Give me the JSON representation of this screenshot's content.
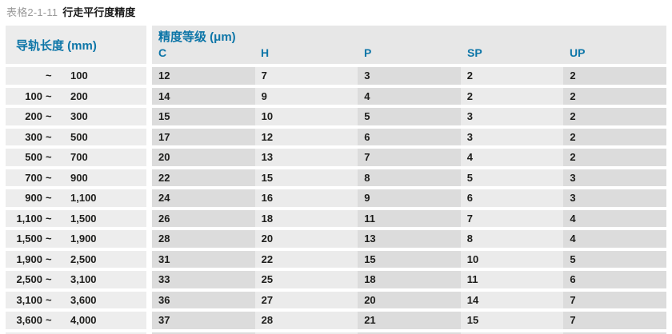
{
  "title": {
    "prefix": "表格2-1-11",
    "text": "行走平行度精度"
  },
  "table": {
    "rail_length_header": "导轨长度 (mm)",
    "accuracy_group_header": "精度等级 (μm)",
    "grade_columns": [
      "C",
      "H",
      "P",
      "SP",
      "UP"
    ],
    "tilde": "~",
    "rows": [
      {
        "from": "",
        "to": "100",
        "values": [
          "12",
          "7",
          "3",
          "2",
          "2"
        ]
      },
      {
        "from": "100",
        "to": "200",
        "values": [
          "14",
          "9",
          "4",
          "2",
          "2"
        ]
      },
      {
        "from": "200",
        "to": "300",
        "values": [
          "15",
          "10",
          "5",
          "3",
          "2"
        ]
      },
      {
        "from": "300",
        "to": "500",
        "values": [
          "17",
          "12",
          "6",
          "3",
          "2"
        ]
      },
      {
        "from": "500",
        "to": "700",
        "values": [
          "20",
          "13",
          "7",
          "4",
          "2"
        ]
      },
      {
        "from": "700",
        "to": "900",
        "values": [
          "22",
          "15",
          "8",
          "5",
          "3"
        ]
      },
      {
        "from": "900",
        "to": "1,100",
        "values": [
          "24",
          "16",
          "9",
          "6",
          "3"
        ]
      },
      {
        "from": "1,100",
        "to": "1,500",
        "values": [
          "26",
          "18",
          "11",
          "7",
          "4"
        ]
      },
      {
        "from": "1,500",
        "to": "1,900",
        "values": [
          "28",
          "20",
          "13",
          "8",
          "4"
        ]
      },
      {
        "from": "1,900",
        "to": "2,500",
        "values": [
          "31",
          "22",
          "15",
          "10",
          "5"
        ]
      },
      {
        "from": "2,500",
        "to": "3,100",
        "values": [
          "33",
          "25",
          "18",
          "11",
          "6"
        ]
      },
      {
        "from": "3,100",
        "to": "3,600",
        "values": [
          "36",
          "27",
          "20",
          "14",
          "7"
        ]
      },
      {
        "from": "3,600",
        "to": "4,000",
        "values": [
          "37",
          "28",
          "21",
          "15",
          "7"
        ]
      }
    ]
  },
  "colors": {
    "accent_blue": "#0e76a8",
    "header_bg": "#e7e7e7",
    "left_column_bg": "#ededed",
    "cell_bg_dark": "#dcdcdc",
    "cell_bg_light": "#ebebeb",
    "text_dark": "#1d1d1b",
    "title_prefix_gray": "#9b9b9b"
  }
}
